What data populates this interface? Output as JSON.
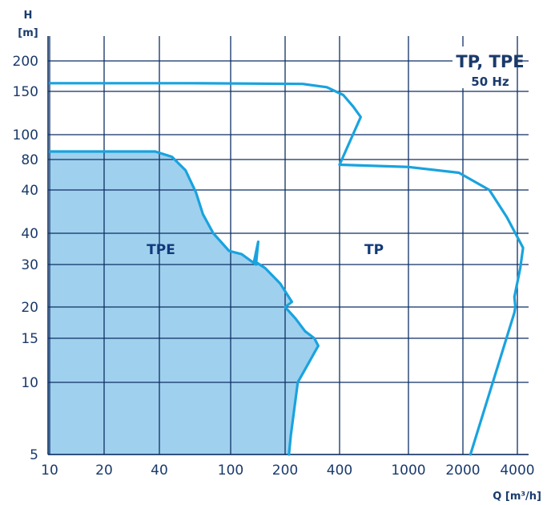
{
  "chart_data": {
    "type": "area",
    "title": "TP, TPE",
    "subtitle": "50 Hz",
    "ylabel": "H",
    "yunit": "[m]",
    "xlabel": "Q [m³/h]",
    "x_ticks": [
      "10",
      "20",
      "40",
      "100",
      "200",
      "400",
      "1000",
      "2000",
      "4000"
    ],
    "y_ticks": [
      "5",
      "10",
      "15",
      "20",
      "30",
      "40",
      "40",
      "80",
      "100",
      "150",
      "200"
    ],
    "grid": true,
    "series": [
      {
        "name": "TPE",
        "fill": true,
        "points": [
          [
            10,
            86
          ],
          [
            38,
            86
          ],
          [
            47,
            82
          ],
          [
            56,
            70
          ],
          [
            64,
            54
          ],
          [
            70,
            46
          ],
          [
            80,
            40
          ],
          [
            98,
            34
          ],
          [
            115,
            33
          ],
          [
            138,
            30
          ],
          [
            142,
            37
          ],
          [
            135,
            31
          ],
          [
            155,
            29
          ],
          [
            188,
            25
          ],
          [
            218,
            21
          ],
          [
            200,
            20
          ],
          [
            228,
            18
          ],
          [
            258,
            16
          ],
          [
            290,
            15
          ],
          [
            305,
            14
          ],
          [
            235,
            10
          ],
          [
            215,
            6
          ],
          [
            210,
            5
          ]
        ]
      },
      {
        "name": "TP",
        "fill": false,
        "points_upper": [
          [
            10,
            162
          ],
          [
            60,
            162
          ],
          [
            250,
            161
          ],
          [
            340,
            156
          ],
          [
            420,
            145
          ],
          [
            480,
            130
          ],
          [
            530,
            118
          ],
          [
            400,
            75
          ]
        ],
        "points_lower": [
          [
            400,
            75
          ],
          [
            1000,
            73
          ],
          [
            1900,
            68
          ],
          [
            2800,
            55
          ],
          [
            3500,
            45
          ],
          [
            4300,
            35
          ],
          [
            4150,
            29
          ],
          [
            3850,
            22
          ],
          [
            3900,
            20
          ],
          [
            3850,
            19
          ],
          [
            2200,
            5
          ]
        ]
      }
    ],
    "colors": {
      "grid": "#0f2f63",
      "curve": "#19a3de",
      "fill": "#9fd0ee",
      "text": "#1a3a6b"
    }
  }
}
